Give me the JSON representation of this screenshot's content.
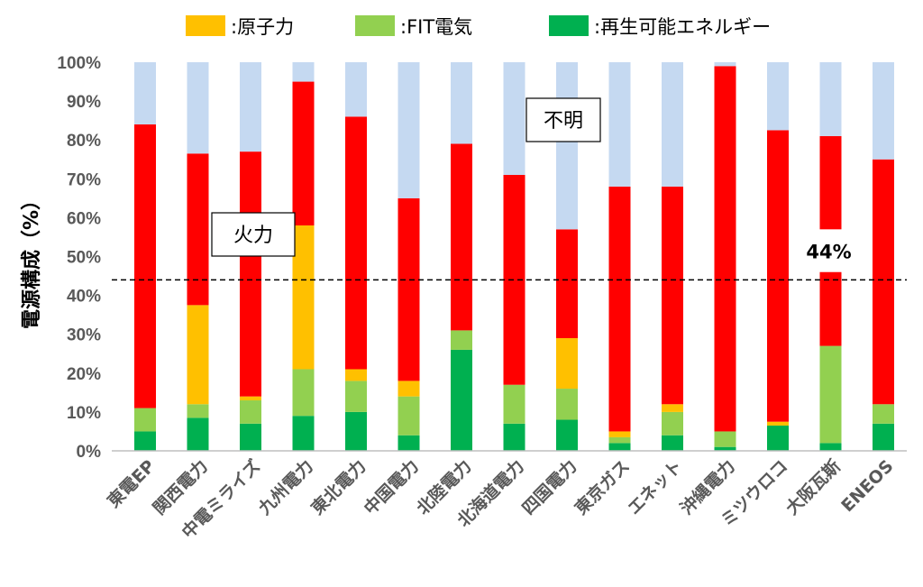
{
  "chart_data": {
    "type": "bar",
    "stacked": true,
    "ylabel": "電源構成（%）",
    "ylim": [
      0,
      100
    ],
    "yticks": [
      "0%",
      "10%",
      "20%",
      "30%",
      "40%",
      "50%",
      "60%",
      "70%",
      "80%",
      "90%",
      "100%"
    ],
    "categories": [
      "東電EP",
      "関西電力",
      "中電ミライズ",
      "九州電力",
      "東北電力",
      "中国電力",
      "北陸電力",
      "北海道電力",
      "四国電力",
      "東京ガス",
      "エネット",
      "沖縄電力",
      "ミツウロコ",
      "大阪瓦斯",
      "ENEOS"
    ],
    "series": [
      {
        "key": "renewable",
        "name": ":再生可能エネルギー",
        "color": "#00b050",
        "values": [
          5,
          8.5,
          7,
          9,
          10,
          4,
          26,
          7,
          8,
          2,
          4,
          1,
          6.5,
          2,
          7
        ]
      },
      {
        "key": "fit",
        "name": ":FIT電気",
        "color": "#92d050",
        "values": [
          6,
          3.5,
          6,
          12,
          8,
          10,
          5,
          10,
          8,
          1.5,
          6,
          4,
          0,
          25,
          5
        ]
      },
      {
        "key": "nuclear",
        "name": ":原子力",
        "color": "#ffc000",
        "values": [
          0,
          25.5,
          1,
          37,
          3,
          4,
          0,
          0,
          13,
          1.5,
          2,
          0,
          1,
          0,
          0
        ]
      },
      {
        "key": "thermal",
        "color": "#ff0000",
        "values": [
          73,
          39,
          63,
          37,
          65,
          47,
          48,
          54,
          28,
          63,
          56,
          94,
          75,
          54,
          63
        ]
      },
      {
        "key": "unknown",
        "color": "#c5d9f1",
        "values": [
          16,
          23.5,
          23,
          5,
          14,
          35,
          21,
          29,
          43,
          32,
          32,
          1,
          17.5,
          19,
          25
        ]
      }
    ],
    "legend": {
      "position": "top",
      "entries": [
        "nuclear",
        "fit",
        "renewable"
      ]
    },
    "reference_line": {
      "value": 44,
      "label": "44%",
      "style": "dashed"
    },
    "annotations": [
      {
        "text": "火力",
        "series": "thermal"
      },
      {
        "text": "不明",
        "series": "unknown"
      }
    ],
    "grid": false
  }
}
